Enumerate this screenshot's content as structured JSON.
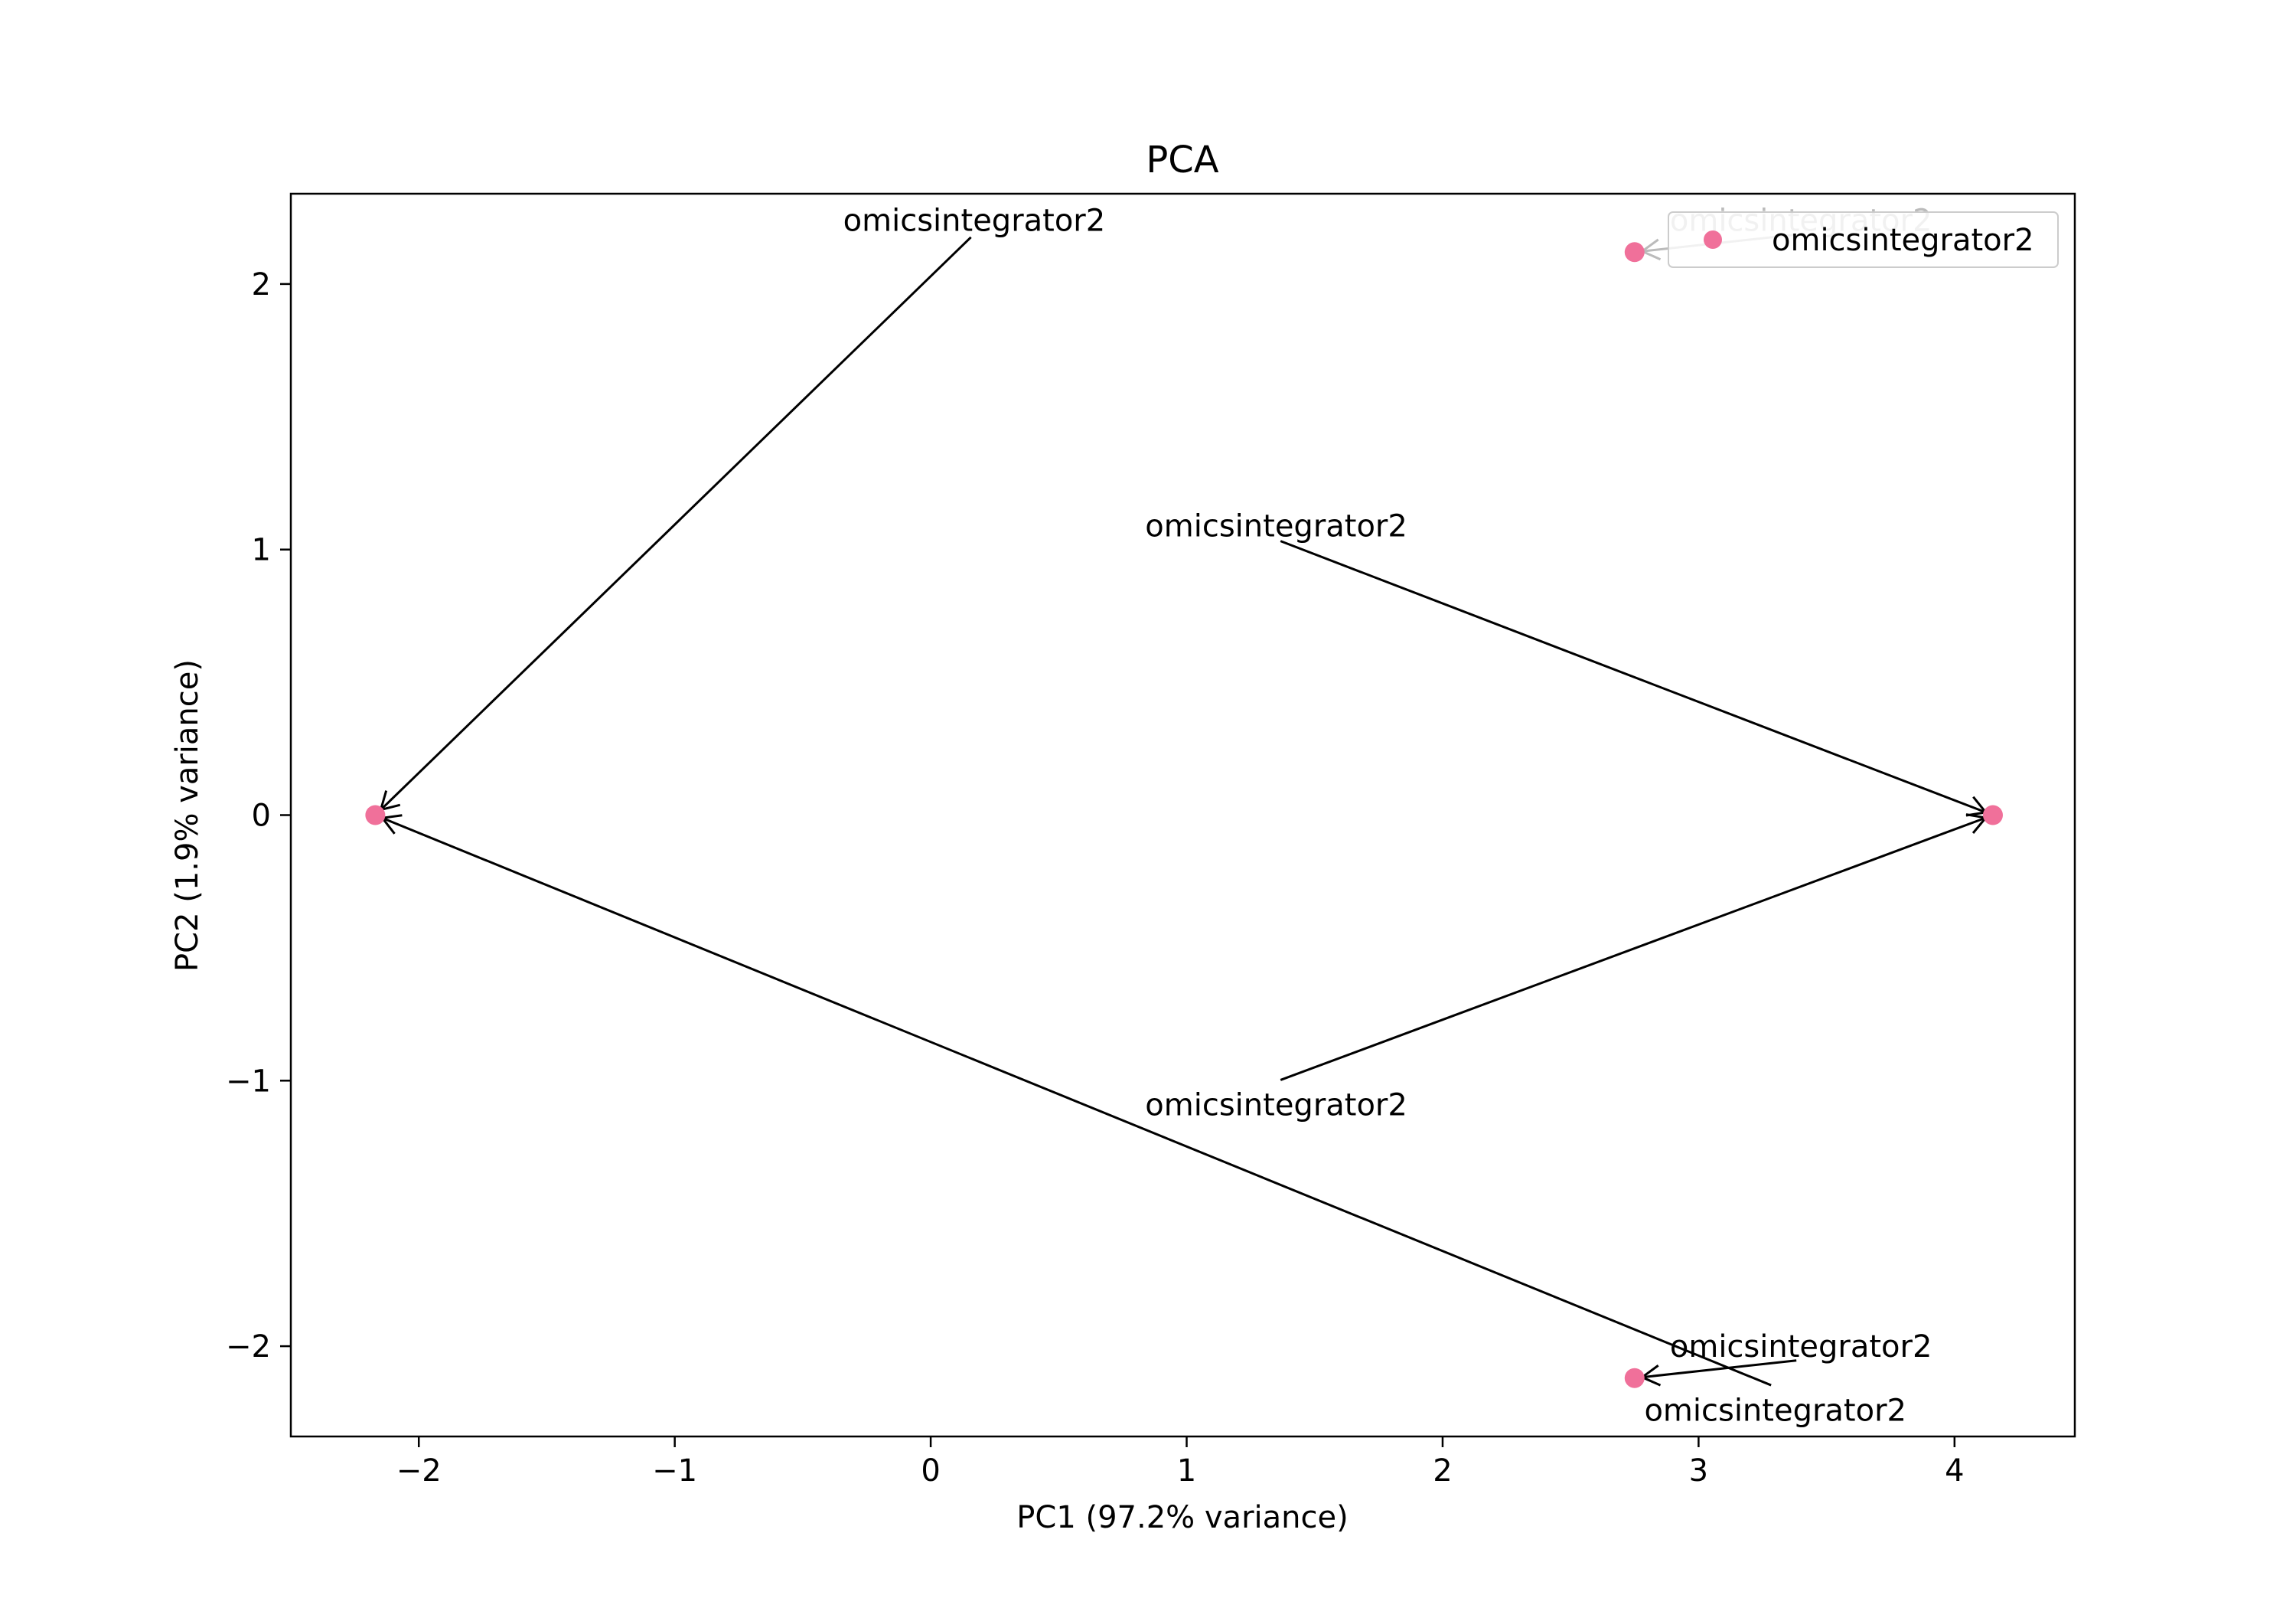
{
  "chart_data": {
    "type": "scatter",
    "title": "PCA",
    "xlabel": "PC1 (97.2% variance)",
    "ylabel": "PC2 (1.9% variance)",
    "xlim": [
      -2.5,
      4.47
    ],
    "ylim": [
      -2.34,
      2.34
    ],
    "x_ticks": [
      -2,
      -1,
      0,
      1,
      2,
      3,
      4
    ],
    "y_ticks": [
      -2,
      -1,
      0,
      1,
      2
    ],
    "x_tick_labels": [
      "−2",
      "−1",
      "0",
      "1",
      "2",
      "3",
      "4"
    ],
    "y_tick_labels": [
      "−2",
      "−1",
      "0",
      "1",
      "2"
    ],
    "grid": false,
    "legend_position": "top-right",
    "series": [
      {
        "name": "omicsintegrator2",
        "color": "#f0709a",
        "points": [
          {
            "x": -2.17,
            "y": 0.0
          },
          {
            "x": 4.15,
            "y": 0.0
          },
          {
            "x": 2.75,
            "y": 2.12
          },
          {
            "x": 2.75,
            "y": -2.12
          }
        ]
      }
    ],
    "annotations": [
      {
        "text": "omicsintegrator2",
        "text_x": 0.17,
        "text_y": 2.24,
        "point_x": -2.17,
        "point_y": 0.0,
        "color": "#000000"
      },
      {
        "text": "omicsintegrator2",
        "text_x": 1.35,
        "text_y": 1.09,
        "point_x": 4.15,
        "point_y": 0.0,
        "color": "#000000"
      },
      {
        "text": "omicsintegrator2",
        "text_x": 1.35,
        "text_y": -1.09,
        "point_x": 4.15,
        "point_y": 0.0,
        "color": "#000000"
      },
      {
        "text": "omicsintegrator2",
        "text_x": 3.3,
        "text_y": -2.24,
        "point_x": -2.17,
        "point_y": 0.0,
        "color": "#000000"
      },
      {
        "text": "omicsintegrator2",
        "text_x": 3.4,
        "text_y": 2.24,
        "point_x": 2.75,
        "point_y": 2.12,
        "color": "#bbbbbb"
      },
      {
        "text": "omicsintegrator2",
        "text_x": 3.4,
        "text_y": -2.0,
        "point_x": 2.75,
        "point_y": -2.12,
        "color": "#000000"
      }
    ]
  }
}
